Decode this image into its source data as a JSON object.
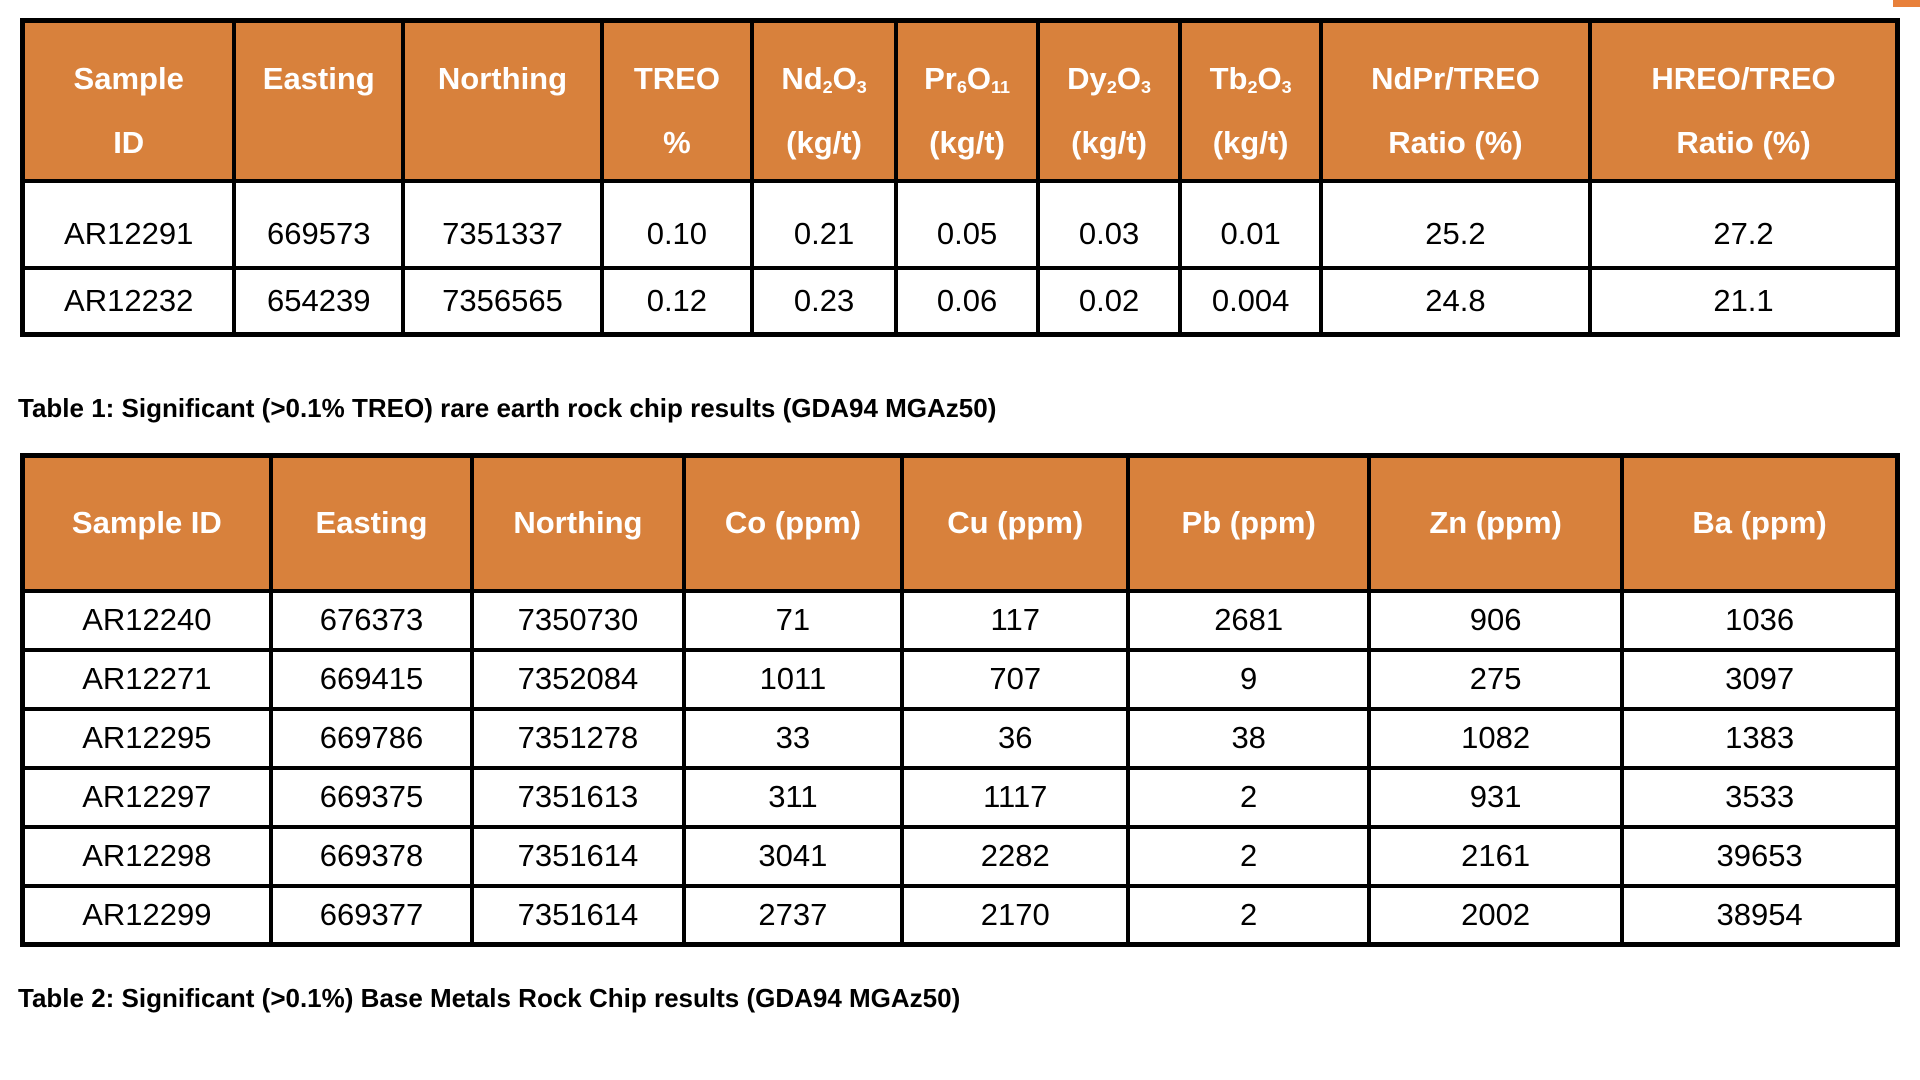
{
  "page": {
    "background": "#ffffff",
    "accent_orange": "#D8813C",
    "border_black": "#000000",
    "corner_mark_color": "#E8803A"
  },
  "table1": {
    "caption": "Table 1: Significant (>0.1% TREO) rare earth rock chip results (GDA94 MGAz50)",
    "columns": [
      {
        "line1": [
          [
            "n",
            "Sample"
          ]
        ],
        "line2": [
          [
            "n",
            "ID"
          ]
        ]
      },
      {
        "line1": [
          [
            "n",
            "Easting"
          ]
        ],
        "line2": []
      },
      {
        "line1": [
          [
            "n",
            "Northing"
          ]
        ],
        "line2": []
      },
      {
        "line1": [
          [
            "n",
            "TREO"
          ]
        ],
        "line2": [
          [
            "n",
            "%"
          ]
        ]
      },
      {
        "line1": [
          [
            "n",
            "Nd"
          ],
          [
            "sub",
            "2"
          ],
          [
            "n",
            "O"
          ],
          [
            "sub",
            "3"
          ]
        ],
        "line2": [
          [
            "n",
            "(kg/t)"
          ]
        ]
      },
      {
        "line1": [
          [
            "n",
            "Pr"
          ],
          [
            "sub",
            "6"
          ],
          [
            "n",
            "O"
          ],
          [
            "sub",
            "11"
          ]
        ],
        "line2": [
          [
            "n",
            "(kg/t)"
          ]
        ]
      },
      {
        "line1": [
          [
            "n",
            "Dy"
          ],
          [
            "sub",
            "2"
          ],
          [
            "n",
            "O"
          ],
          [
            "sub",
            "3"
          ]
        ],
        "line2": [
          [
            "n",
            "(kg/t)"
          ]
        ]
      },
      {
        "line1": [
          [
            "n",
            "Tb"
          ],
          [
            "sub",
            "2"
          ],
          [
            "n",
            "O"
          ],
          [
            "sub",
            "3"
          ]
        ],
        "line2": [
          [
            "n",
            "(kg/t)"
          ]
        ]
      },
      {
        "line1": [
          [
            "n",
            "NdPr/TREO"
          ]
        ],
        "line2": [
          [
            "n",
            "Ratio (%)"
          ]
        ]
      },
      {
        "line1": [
          [
            "n",
            "HREO/TREO"
          ]
        ],
        "line2": [
          [
            "n",
            "Ratio (%)"
          ]
        ]
      }
    ],
    "rows": [
      [
        "AR12291",
        "669573",
        "7351337",
        "0.10",
        "0.21",
        "0.05",
        "0.03",
        "0.01",
        "25.2",
        "27.2"
      ],
      [
        "AR12232",
        "654239",
        "7356565",
        "0.12",
        "0.23",
        "0.06",
        "0.02",
        "0.004",
        "24.8",
        "21.1"
      ]
    ]
  },
  "table2": {
    "caption": "Table 2: Significant (>0.1%) Base Metals Rock Chip results (GDA94 MGAz50)",
    "columns": [
      "Sample ID",
      "Easting",
      "Northing",
      "Co (ppm)",
      "Cu (ppm)",
      "Pb (ppm)",
      "Zn (ppm)",
      "Ba (ppm)"
    ],
    "rows": [
      [
        "AR12240",
        "676373",
        "7350730",
        "71",
        "117",
        "2681",
        "906",
        "1036"
      ],
      [
        "AR12271",
        "669415",
        "7352084",
        "1011",
        "707",
        "9",
        "275",
        "3097"
      ],
      [
        "AR12295",
        "669786",
        "7351278",
        "33",
        "36",
        "38",
        "1082",
        "1383"
      ],
      [
        "AR12297",
        "669375",
        "7351613",
        "311",
        "1117",
        "2",
        "931",
        "3533"
      ],
      [
        "AR12298",
        "669378",
        "7351614",
        "3041",
        "2282",
        "2",
        "2161",
        "39653"
      ],
      [
        "AR12299",
        "669377",
        "7351614",
        "2737",
        "2170",
        "2",
        "2002",
        "38954"
      ]
    ]
  }
}
